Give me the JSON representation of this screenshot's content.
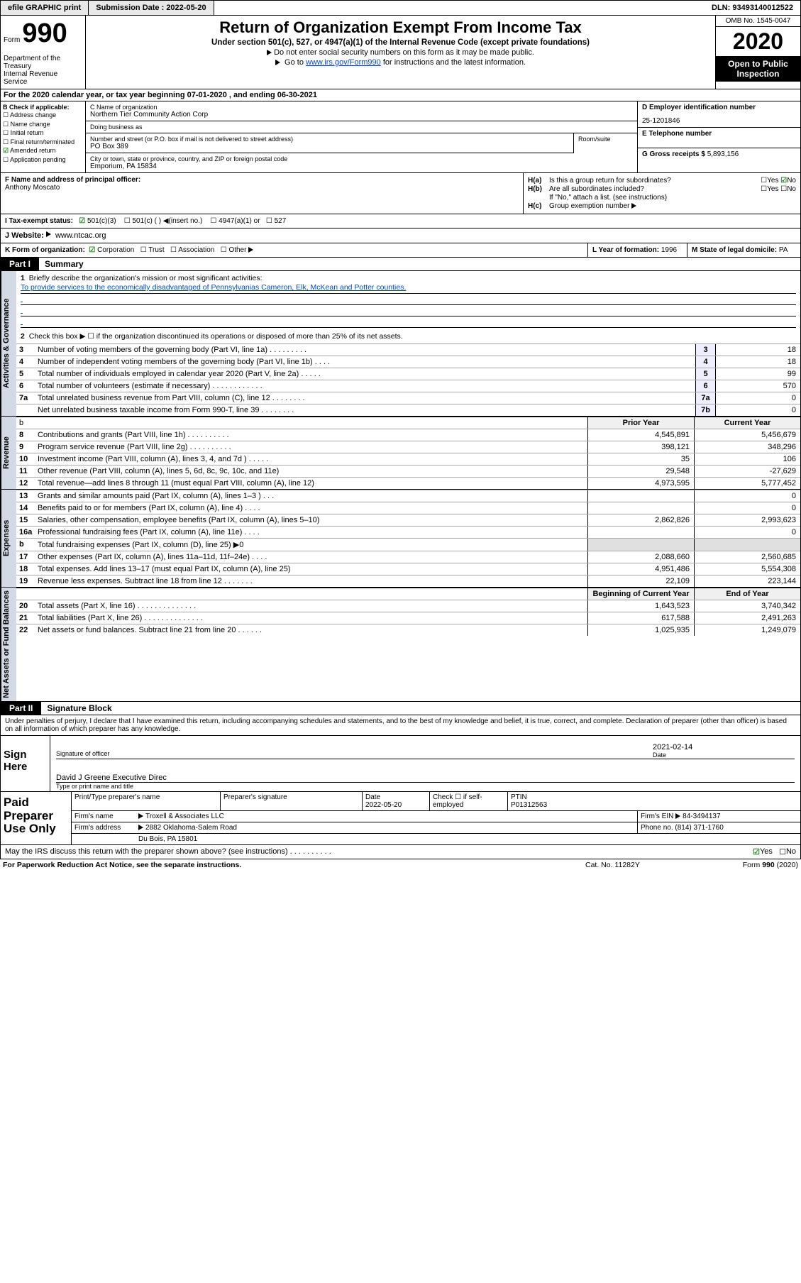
{
  "topbar": {
    "efile": "efile GRAPHIC print",
    "submission_label": "Submission Date : 2022-05-20",
    "dln": "DLN: 93493140012522"
  },
  "form_header": {
    "form_word": "Form",
    "form_number": "990",
    "dept": "Department of the Treasury\nInternal Revenue Service",
    "title": "Return of Organization Exempt From Income Tax",
    "subtitle": "Under section 501(c), 527, or 4947(a)(1) of the Internal Revenue Code (except private foundations)",
    "note1": "Do not enter social security numbers on this form as it may be made public.",
    "note2_pre": "Go to ",
    "note2_link": "www.irs.gov/Form990",
    "note2_post": " for instructions and the latest information.",
    "omb": "OMB No. 1545-0047",
    "year": "2020",
    "inspect": "Open to Public Inspection"
  },
  "line_a": "For the 2020 calendar year, or tax year beginning 07-01-2020    , and ending 06-30-2021",
  "section_b": {
    "label": "B Check if applicable:",
    "address_change": "Address change",
    "name_change": "Name change",
    "initial_return": "Initial return",
    "final_return": "Final return/terminated",
    "amended_return": "Amended return",
    "application_pending": "Application pending",
    "amended_checked": true
  },
  "section_c": {
    "name_label": "C Name of organization",
    "org_name": "Northern Tier Community Action Corp",
    "dba_label": "Doing business as",
    "dba": "",
    "street_label": "Number and street (or P.O. box if mail is not delivered to street address)",
    "street": "PO Box 389",
    "room_label": "Room/suite",
    "room": "",
    "city_label": "City or town, state or province, country, and ZIP or foreign postal code",
    "city": "Emporium, PA   15834"
  },
  "section_d": {
    "ein_label": "D Employer identification number",
    "ein": "25-1201846",
    "phone_label": "E Telephone number",
    "phone": "",
    "gross_label": "G Gross receipts $",
    "gross": "5,893,156"
  },
  "section_f": {
    "label": "F  Name and address of principal officer:",
    "name": "Anthony Moscato"
  },
  "section_h": {
    "a_label": "H(a)",
    "a_text": "Is this a group return for subordinates?",
    "a_yes": "Yes",
    "a_no": "No",
    "a_value": "No",
    "b_label": "H(b)",
    "b_text": "Are all subordinates included?",
    "b_yes": "Yes",
    "b_no": "No",
    "b_note": "If \"No,\" attach a list. (see instructions)",
    "c_label": "H(c)",
    "c_text": "Group exemption number"
  },
  "section_i": {
    "label": "I  Tax-exempt status:",
    "c501c3": "501(c)(3)",
    "c501c": "501(c) (  )",
    "insert": "(insert no.)",
    "s4947": "4947(a)(1) or",
    "s527": "527",
    "checked_501c3": true
  },
  "section_j": {
    "label": "J  Website:",
    "url": "www.ntcac.org"
  },
  "section_k": {
    "label": "K Form of organization:",
    "corp": "Corporation",
    "trust": "Trust",
    "assoc": "Association",
    "other": "Other",
    "corp_checked": true,
    "l_label": "L Year of formation:",
    "l_val": "1996",
    "m_label": "M State of legal domicile:",
    "m_val": "PA"
  },
  "part1": {
    "tag": "Part I",
    "title": "Summary"
  },
  "summary": {
    "line1_label": "Briefly describe the organization's mission or most significant activities:",
    "line1_text": "To provide services to the economically disadvantaged of Pennsylvanias Cameron, Elk, McKean and Potter counties.",
    "line2_label": "Check this box ▶ ☐  if the organization discontinued its operations or disposed of more than 25% of its net assets.",
    "rows_single": [
      {
        "n": "3",
        "lbl": "Number of voting members of the governing body (Part VI, line 1a)   .    .    .    .    .    .    .    .    .",
        "box": "3",
        "val": "18"
      },
      {
        "n": "4",
        "lbl": "Number of independent voting members of the governing body (Part VI, line 1b)   .    .    .    .",
        "box": "4",
        "val": "18"
      },
      {
        "n": "5",
        "lbl": "Total number of individuals employed in calendar year 2020 (Part V, line 2a)   .    .    .    .    .",
        "box": "5",
        "val": "99"
      },
      {
        "n": "6",
        "lbl": "Total number of volunteers (estimate if necessary)   .    .    .    .    .    .    .    .    .    .    .    .",
        "box": "6",
        "val": "570"
      },
      {
        "n": "7a",
        "lbl": "Total unrelated business revenue from Part VIII, column (C), line 12   .    .    .    .    .    .    .    .",
        "box": "7a",
        "val": "0"
      },
      {
        "n": "",
        "lbl": "Net unrelated business taxable income from Form 990-T, line 39   .    .    .    .    .    .    .    .",
        "box": "7b",
        "val": "0"
      }
    ],
    "year_header": {
      "prior": "Prior Year",
      "current": "Current Year"
    },
    "revenue": [
      {
        "n": "8",
        "lbl": "Contributions and grants (Part VIII, line 1h)   .    .    .    .    .    .    .    .    .    .",
        "p": "4,545,891",
        "c": "5,456,679"
      },
      {
        "n": "9",
        "lbl": "Program service revenue (Part VIII, line 2g)   .    .    .    .    .    .    .    .    .    .",
        "p": "398,121",
        "c": "348,296"
      },
      {
        "n": "10",
        "lbl": "Investment income (Part VIII, column (A), lines 3, 4, and 7d )   .    .    .    .    .",
        "p": "35",
        "c": "106"
      },
      {
        "n": "11",
        "lbl": "Other revenue (Part VIII, column (A), lines 5, 6d, 8c, 9c, 10c, and 11e)",
        "p": "29,548",
        "c": "-27,629"
      },
      {
        "n": "12",
        "lbl": "Total revenue—add lines 8 through 11 (must equal Part VIII, column (A), line 12)",
        "p": "4,973,595",
        "c": "5,777,452"
      }
    ],
    "expenses": [
      {
        "n": "13",
        "lbl": "Grants and similar amounts paid (Part IX, column (A), lines 1–3 )   .    .    .",
        "p": "",
        "c": "0"
      },
      {
        "n": "14",
        "lbl": "Benefits paid to or for members (Part IX, column (A), line 4)   .    .    .    .",
        "p": "",
        "c": "0"
      },
      {
        "n": "15",
        "lbl": "Salaries, other compensation, employee benefits (Part IX, column (A), lines 5–10)",
        "p": "2,862,826",
        "c": "2,993,623"
      },
      {
        "n": "16a",
        "lbl": "Professional fundraising fees (Part IX, column (A), line 11e)   .    .    .    .",
        "p": "",
        "c": "0"
      },
      {
        "n": "b",
        "lbl": "Total fundraising expenses (Part IX, column (D), line 25) ▶0",
        "shade": true,
        "p": "",
        "c": ""
      },
      {
        "n": "17",
        "lbl": "Other expenses (Part IX, column (A), lines 11a–11d, 11f–24e)   .    .    .    .",
        "p": "2,088,660",
        "c": "2,560,685"
      },
      {
        "n": "18",
        "lbl": "Total expenses. Add lines 13–17 (must equal Part IX, column (A), line 25)",
        "p": "4,951,486",
        "c": "5,554,308"
      },
      {
        "n": "19",
        "lbl": "Revenue less expenses. Subtract line 18 from line 12   .    .    .    .    .    .    .",
        "p": "22,109",
        "c": "223,144"
      }
    ],
    "balance_header": {
      "beg": "Beginning of Current Year",
      "end": "End of Year"
    },
    "balances": [
      {
        "n": "20",
        "lbl": "Total assets (Part X, line 16)   .    .    .    .    .    .    .    .    .    .    .    .    .    .",
        "p": "1,643,523",
        "c": "3,740,342"
      },
      {
        "n": "21",
        "lbl": "Total liabilities (Part X, line 26)   .    .    .    .    .    .    .    .    .    .    .    .    .    .",
        "p": "617,588",
        "c": "2,491,263"
      },
      {
        "n": "22",
        "lbl": "Net assets or fund balances. Subtract line 21 from line 20   .    .    .    .    .    .",
        "p": "1,025,935",
        "c": "1,249,079"
      }
    ]
  },
  "vtabs": {
    "gov": "Activities & Governance",
    "rev": "Revenue",
    "exp": "Expenses",
    "bal": "Net Assets or Fund Balances"
  },
  "part2": {
    "tag": "Part II",
    "title": "Signature Block"
  },
  "signature": {
    "perjury": "Under penalties of perjury, I declare that I have examined this return, including accompanying schedules and statements, and to the best of my knowledge and belief, it is true, correct, and complete. Declaration of preparer (other than officer) is based on all information of which preparer has any knowledge.",
    "sign_here": "Sign Here",
    "sig_officer": "Signature of officer",
    "sig_date": "2021-02-14",
    "date_lbl": "Date",
    "name_title": "David J Greene  Executive Direc",
    "name_caption": "Type or print name and title"
  },
  "preparer": {
    "label": "Paid Preparer Use Only",
    "print_name_lbl": "Print/Type preparer's name",
    "print_name": "",
    "sig_lbl": "Preparer's signature",
    "date_lbl": "Date",
    "date": "2022-05-20",
    "check_self": "Check ☐ if self-employed",
    "ptin_lbl": "PTIN",
    "ptin": "P01312563",
    "firm_name_lbl": "Firm's name",
    "firm_name": "Troxell & Associates LLC",
    "firm_ein_lbl": "Firm's EIN",
    "firm_ein": "84-3494137",
    "firm_addr_lbl": "Firm's address",
    "firm_addr1": "2882 Oklahoma-Salem Road",
    "firm_addr2": "Du Bois, PA   15801",
    "phone_lbl": "Phone no.",
    "phone": "(814) 371-1760"
  },
  "discuss": {
    "text": "May the IRS discuss this return with the preparer shown above? (see instructions)   .    .    .    .    .    .    .    .    .    .",
    "yes": "Yes",
    "no": "No",
    "value": "Yes"
  },
  "footer": {
    "left": "For Paperwork Reduction Act Notice, see the separate instructions.",
    "mid": "Cat. No. 11282Y",
    "right": "Form 990 (2020)"
  }
}
